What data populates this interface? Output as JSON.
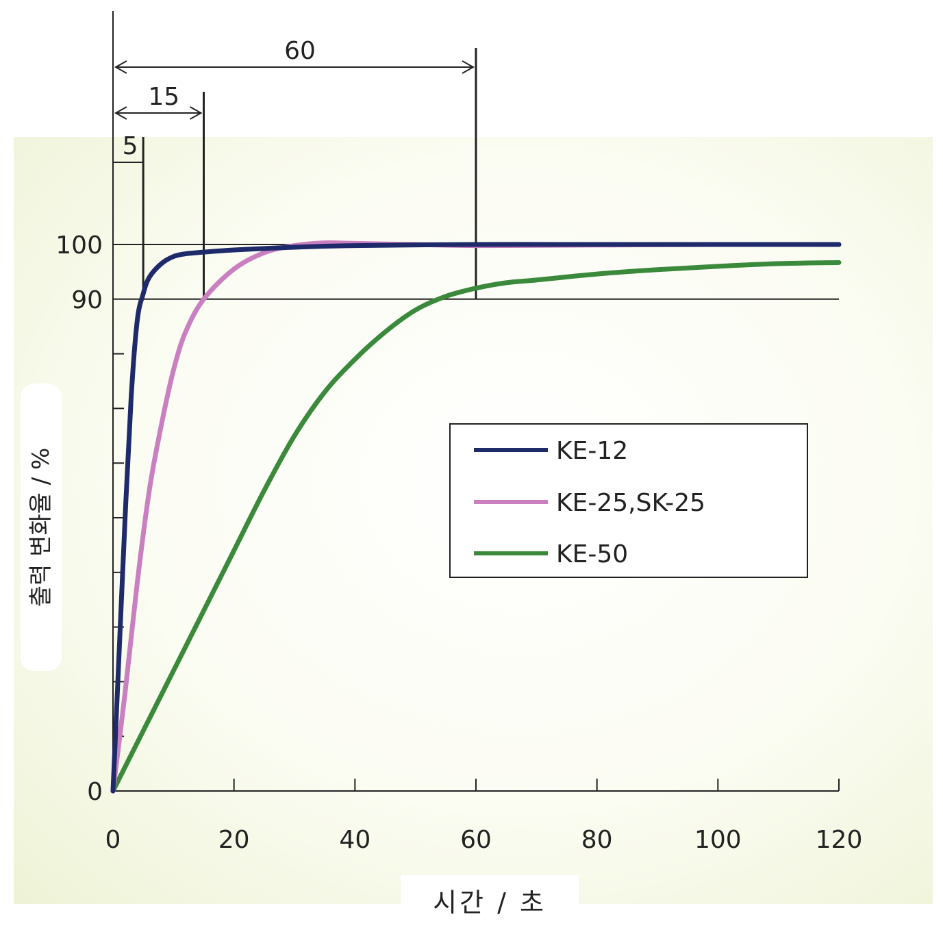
{
  "chart_data": {
    "type": "line",
    "xlabel": "시간 / 초",
    "ylabel": "출력 변화율 / %",
    "xlim": [
      0,
      120
    ],
    "ylim": [
      0,
      100
    ],
    "x_ticks": [
      "0",
      "20",
      "40",
      "60",
      "80",
      "100",
      "120"
    ],
    "y_ticks": [
      "0",
      "90",
      "100"
    ],
    "grid": false,
    "legend_position": "center-right",
    "series": [
      {
        "name": "KE-12",
        "color": "#1f2a6b",
        "x": [
          0,
          1,
          2,
          3,
          4,
          5,
          6,
          8,
          10,
          12,
          15,
          20,
          30,
          40,
          60,
          80,
          100,
          120
        ],
        "y": [
          0,
          25,
          50,
          72,
          86,
          91,
          94,
          96.5,
          97.8,
          98.3,
          98.6,
          99,
          99.5,
          99.8,
          100,
          100,
          100,
          100
        ]
      },
      {
        "name": "KE-25,SK-25",
        "color": "#c97fc0",
        "x": [
          0,
          2,
          4,
          6,
          8,
          10,
          12,
          15,
          20,
          25,
          30,
          35,
          40,
          50,
          60,
          80,
          100,
          120
        ],
        "y": [
          0,
          18,
          38,
          55,
          67,
          77,
          84,
          90,
          95.5,
          98.5,
          99.8,
          100.3,
          100.2,
          100,
          99.8,
          99.9,
          100,
          100
        ]
      },
      {
        "name": "KE-50",
        "color": "#3b8a3b",
        "x": [
          0,
          5,
          10,
          15,
          20,
          25,
          30,
          35,
          40,
          45,
          50,
          55,
          60,
          65,
          70,
          80,
          90,
          100,
          110,
          120
        ],
        "y": [
          0,
          11,
          22,
          33,
          44,
          55,
          65,
          73,
          79,
          84,
          88,
          90.5,
          92,
          93,
          93.5,
          94.6,
          95.4,
          96,
          96.5,
          96.7
        ]
      }
    ],
    "annotations": [
      {
        "label": "5",
        "x": 5
      },
      {
        "label": "15",
        "x": 15
      },
      {
        "label": "60",
        "x": 60
      }
    ],
    "reference_lines_y": [
      90,
      100
    ]
  }
}
